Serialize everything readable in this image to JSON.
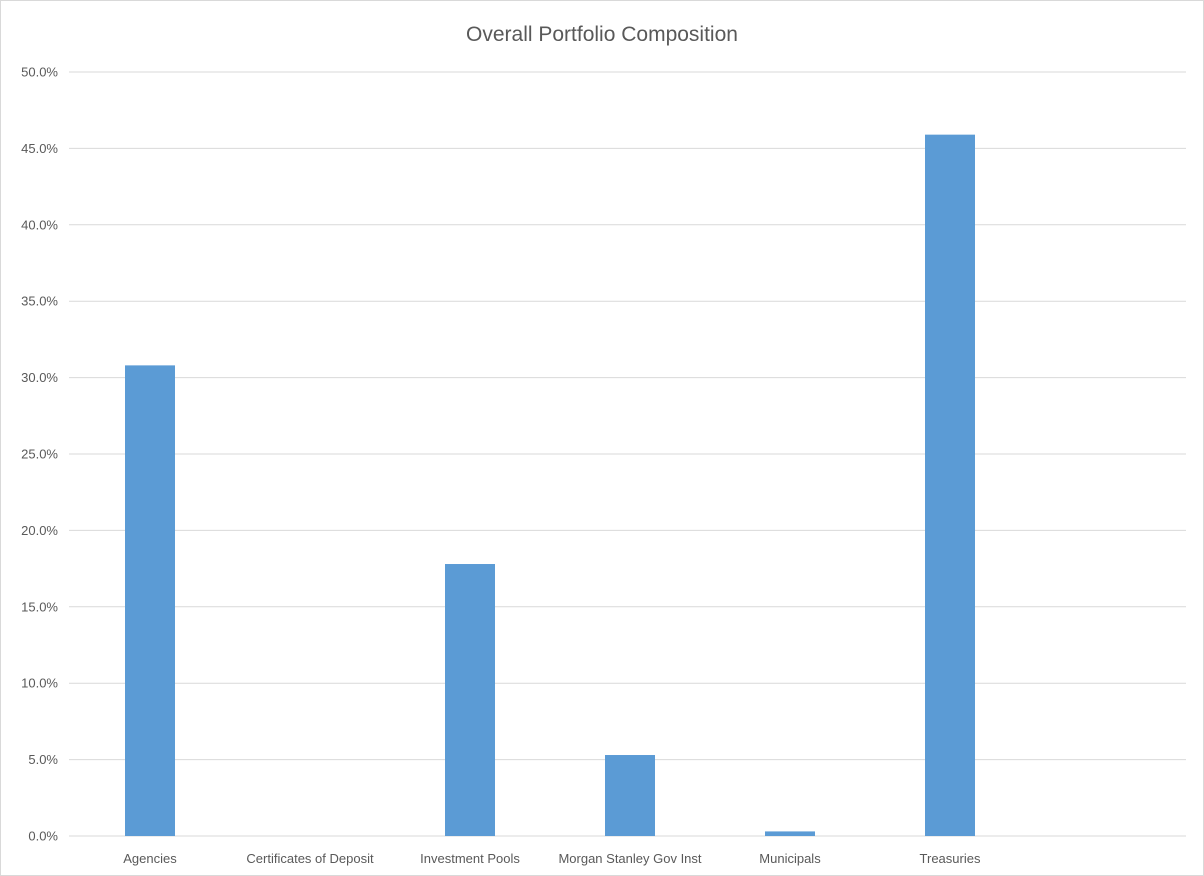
{
  "chart_data": {
    "type": "bar",
    "title": "Overall Portfolio Composition",
    "xlabel": "",
    "ylabel": "",
    "categories": [
      "Agencies",
      "Certificates of Deposit",
      "Investment Pools",
      "Morgan Stanley Gov Inst",
      "Municipals",
      "Treasuries"
    ],
    "values": [
      30.8,
      0.0,
      17.8,
      5.3,
      0.3,
      45.9
    ],
    "ylim": [
      0,
      50
    ],
    "yticks": [
      "0.0%",
      "5.0%",
      "10.0%",
      "15.0%",
      "20.0%",
      "25.0%",
      "30.0%",
      "35.0%",
      "40.0%",
      "45.0%",
      "50.0%"
    ],
    "grid": true,
    "legend": "none",
    "colors": {
      "bar": "#5b9bd5",
      "grid": "#d9d9d9",
      "text": "#595959"
    }
  }
}
